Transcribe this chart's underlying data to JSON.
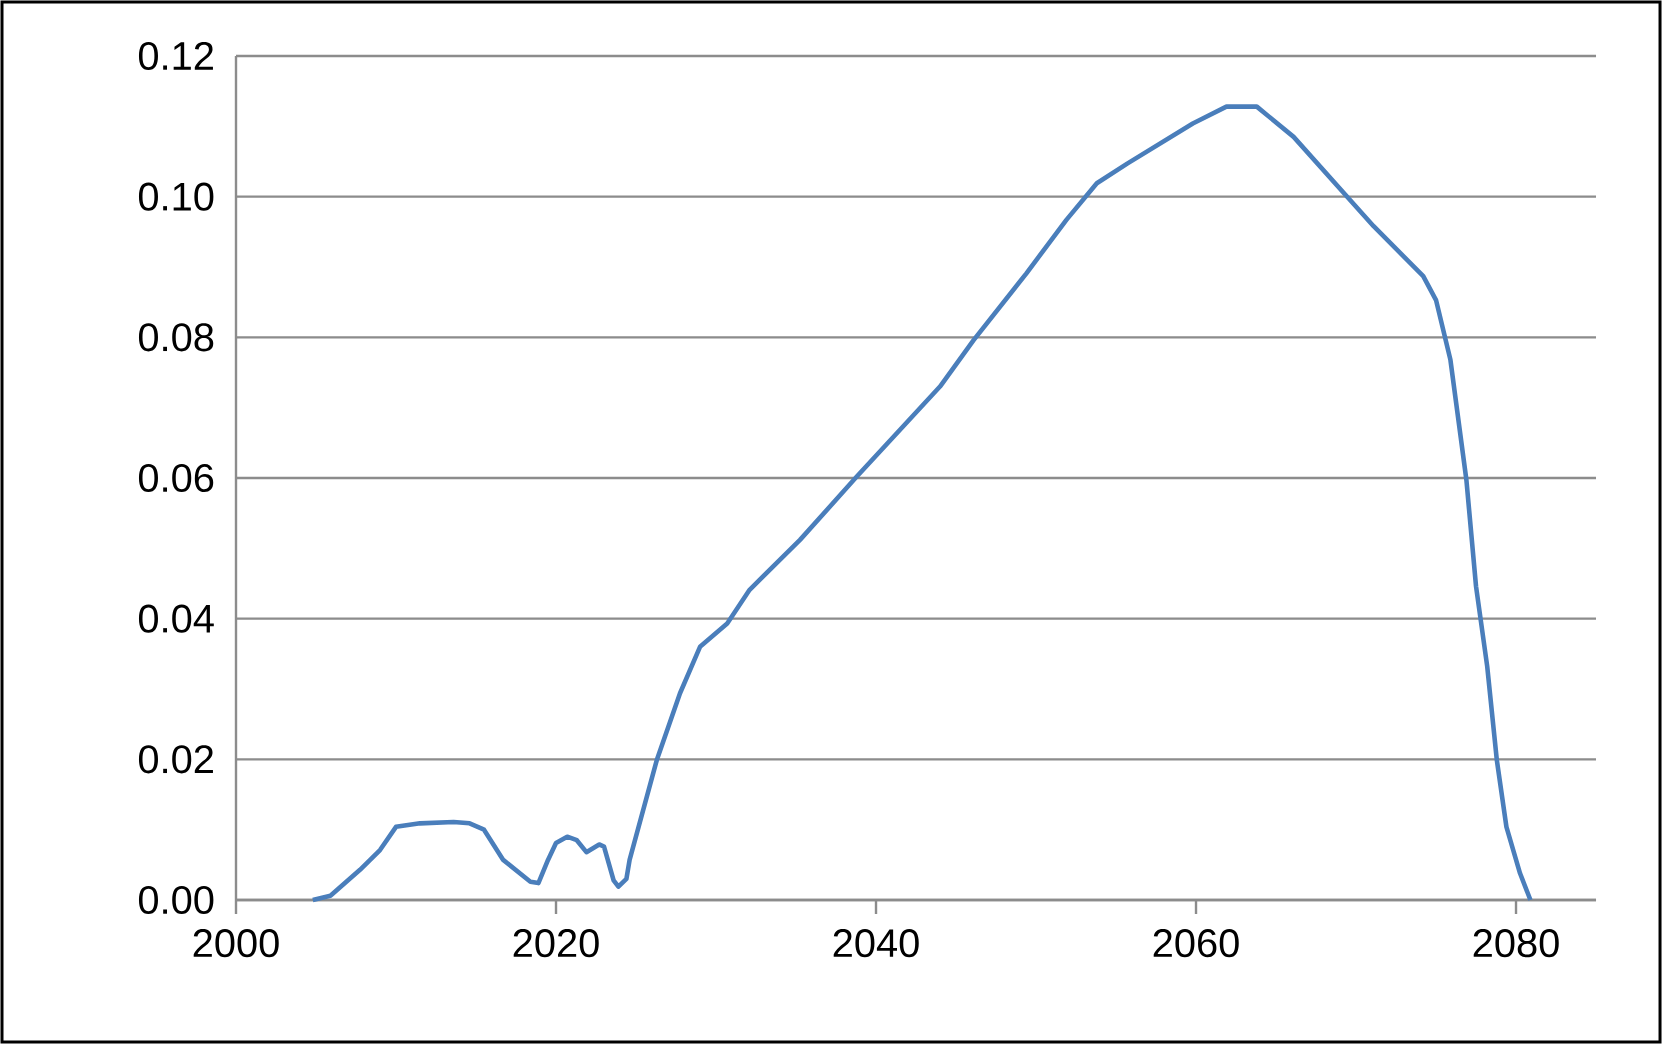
{
  "chart_data": {
    "type": "line",
    "x": [
      2004.8,
      2005.9,
      2007.75,
      2009,
      2010,
      2011.5,
      2013.6,
      2014.6,
      2015.5,
      2016.7,
      2018.4,
      2018.9,
      2019.5,
      2020,
      2020.7,
      2021.3,
      2021.9,
      2022.7,
      2023,
      2023.6,
      2023.9,
      2024.4,
      2024.6,
      2026.3,
      2027.75,
      2029,
      2030.7,
      2032.1,
      2035.25,
      2038.8,
      2044,
      2046.1,
      2049.4,
      2051.9,
      2053.8,
      2055.7,
      2059.8,
      2061.9,
      2063.8,
      2066.1,
      2069.6,
      2071.1,
      2074.2,
      2075,
      2075.9,
      2076.9,
      2077.5,
      2078.2,
      2078.8,
      2079.4,
      2080.25,
      2080.9
    ],
    "series": [
      {
        "color": "#4a7ebb",
        "values": [
          0.0,
          0.0006,
          0.0043,
          0.0071,
          0.0104,
          0.0109,
          0.0111,
          0.0109,
          0.01,
          0.0057,
          0.0026,
          0.0024,
          0.0057,
          0.0081,
          0.009,
          0.0085,
          0.0068,
          0.0079,
          0.0076,
          0.0028,
          0.0019,
          0.003,
          0.0057,
          0.0199,
          0.0294,
          0.036,
          0.0393,
          0.0441,
          0.0512,
          0.0602,
          0.073,
          0.0796,
          0.0891,
          0.0967,
          0.1019,
          0.1047,
          0.1104,
          0.1128,
          0.1128,
          0.1085,
          0.0996,
          0.0958,
          0.0887,
          0.0853,
          0.0768,
          0.0597,
          0.0446,
          0.0332,
          0.0199,
          0.0104,
          0.0038,
          0.0
        ]
      }
    ],
    "xlim": [
      2000,
      2085
    ],
    "xticks": [
      2000,
      2020,
      2040,
      2060,
      2080
    ],
    "ylim": [
      0,
      0.12
    ],
    "yticks": [
      {
        "value": 0,
        "label": "0.00"
      },
      {
        "value": 0.02,
        "label": "0.02"
      },
      {
        "value": 0.04,
        "label": "0.04"
      },
      {
        "value": 0.06,
        "label": "0.06"
      },
      {
        "value": 0.08,
        "label": "0.08"
      },
      {
        "value": 0.1,
        "label": "0.10"
      },
      {
        "value": 0.12,
        "label": "0.12"
      }
    ],
    "grid": "y",
    "marker": "none",
    "line_style": "solid"
  }
}
